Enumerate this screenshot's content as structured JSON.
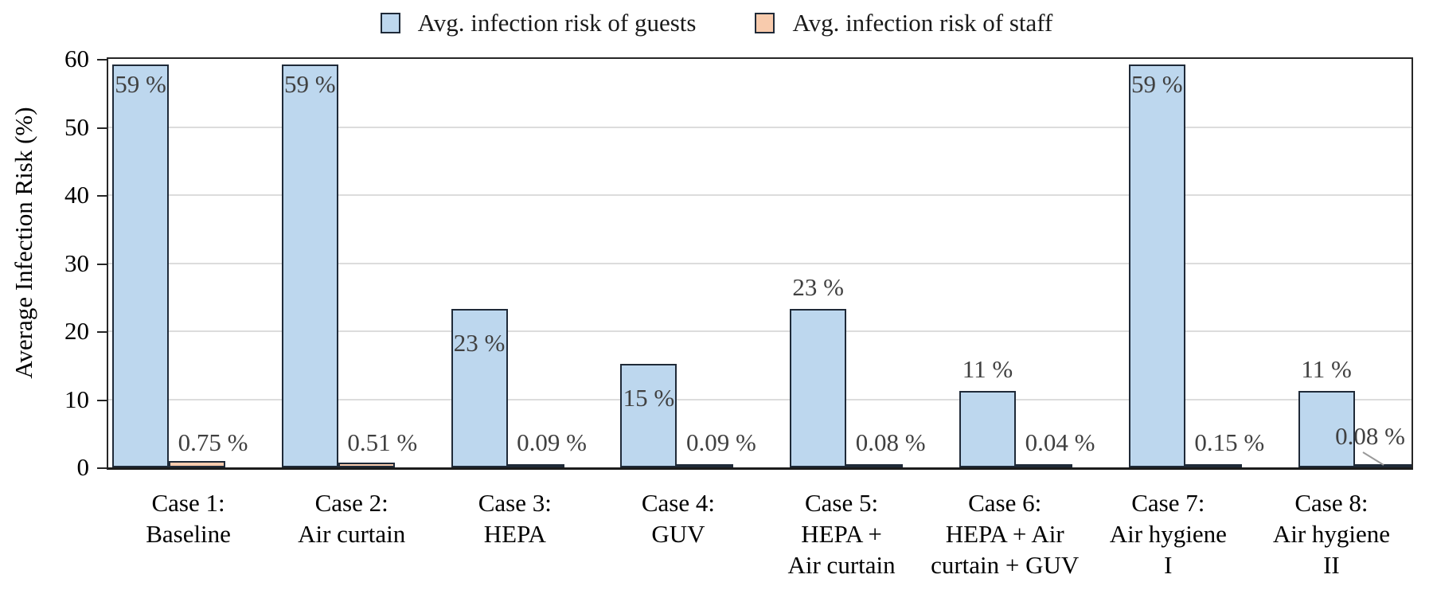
{
  "chart_data": {
    "type": "bar",
    "title": "",
    "ylabel": "Average Infection Risk (%)",
    "ylim": [
      0,
      60
    ],
    "yticks": [
      0,
      10,
      20,
      30,
      40,
      50,
      60
    ],
    "grid": "horizontal",
    "legend_position": "top-center",
    "categories": [
      {
        "lines": [
          "Case 1:",
          "Baseline"
        ]
      },
      {
        "lines": [
          "Case 2:",
          "Air curtain"
        ]
      },
      {
        "lines": [
          "Case 3:",
          "HEPA"
        ]
      },
      {
        "lines": [
          "Case 4:",
          "GUV"
        ]
      },
      {
        "lines": [
          "Case 5:",
          "HEPA +",
          "Air curtain"
        ]
      },
      {
        "lines": [
          "Case 6:",
          "HEPA + Air",
          "curtain + GUV"
        ]
      },
      {
        "lines": [
          "Case 7:",
          "Air hygiene",
          "I"
        ]
      },
      {
        "lines": [
          "Case 8:",
          "Air hygiene",
          "II"
        ]
      }
    ],
    "series": [
      {
        "name": "Avg. infection risk of guests",
        "color": "#BDD7EE",
        "values": [
          59,
          59,
          23,
          15,
          23,
          11,
          59,
          11
        ],
        "labels": [
          "59 %",
          "59 %",
          "23 %",
          "15 %",
          "23 %",
          "11 %",
          "59 %",
          "11 %"
        ],
        "label_placement": [
          "inside",
          "inside",
          "inside",
          "inside",
          "above",
          "above",
          "inside",
          "above"
        ]
      },
      {
        "name": "Avg. infection risk of staff",
        "color": "#F8CBAD",
        "values": [
          0.75,
          0.51,
          0.09,
          0.09,
          0.08,
          0.04,
          0.15,
          0.08
        ],
        "labels": [
          "0.75 %",
          "0.51 %",
          "0.09 %",
          "0.09 %",
          "0.08 %",
          "0.04 %",
          "0.15 %",
          "0.08 %"
        ],
        "leader_line": [
          false,
          false,
          false,
          false,
          false,
          false,
          false,
          true
        ]
      }
    ]
  },
  "colors": {
    "bar_border": "#1f2a38",
    "gridline": "#dcdcdc",
    "axis": "#262626",
    "data_label": "#404040",
    "leader_line": "#999999",
    "guests_fill": "#BDD7EE",
    "staff_fill": "#F8CBAD"
  }
}
